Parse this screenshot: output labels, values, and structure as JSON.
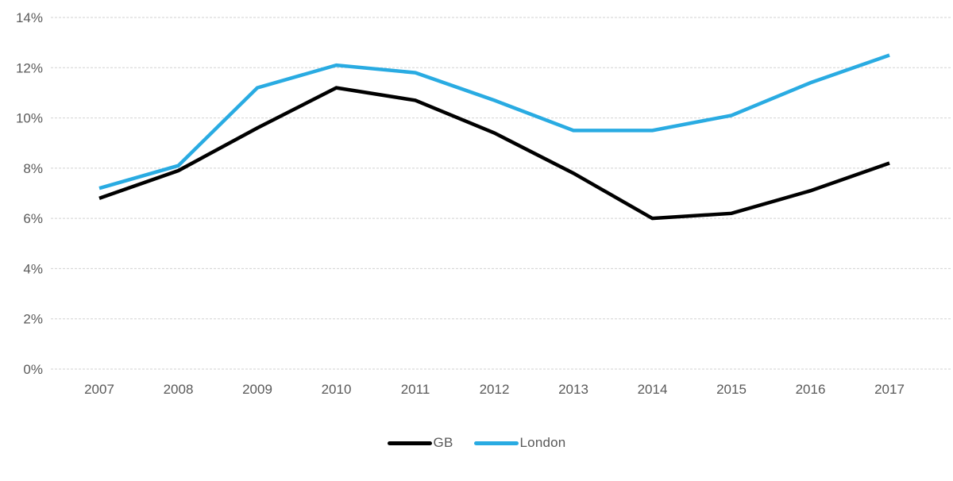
{
  "chart_data": {
    "type": "line",
    "title": "",
    "xlabel": "",
    "ylabel": "",
    "categories": [
      "2007",
      "2008",
      "2009",
      "2010",
      "2011",
      "2012",
      "2013",
      "2014",
      "2015",
      "2016",
      "2017"
    ],
    "series": [
      {
        "name": "GB",
        "color": "#000000",
        "values": [
          6.8,
          7.9,
          9.6,
          11.2,
          10.7,
          9.4,
          7.8,
          6.0,
          6.2,
          7.1,
          8.2
        ]
      },
      {
        "name": "London",
        "color": "#29abe2",
        "values": [
          7.2,
          8.1,
          11.2,
          12.1,
          11.8,
          10.7,
          9.5,
          9.5,
          10.1,
          11.4,
          12.5
        ]
      }
    ],
    "ylim": [
      0,
      14
    ],
    "y_ticks": [
      {
        "v": 0,
        "label": "0%"
      },
      {
        "v": 2,
        "label": "2%"
      },
      {
        "v": 4,
        "label": "4%"
      },
      {
        "v": 6,
        "label": "6%"
      },
      {
        "v": 8,
        "label": "8%"
      },
      {
        "v": 10,
        "label": "10%"
      },
      {
        "v": 12,
        "label": "12%"
      },
      {
        "v": 14,
        "label": "14%"
      }
    ],
    "grid": "horizontal-dashed",
    "legend_position": "bottom"
  },
  "style": {
    "grid_color": "#d2d2d2",
    "axis_text_color": "#595959",
    "background": "#ffffff",
    "line_width": 4.5
  }
}
